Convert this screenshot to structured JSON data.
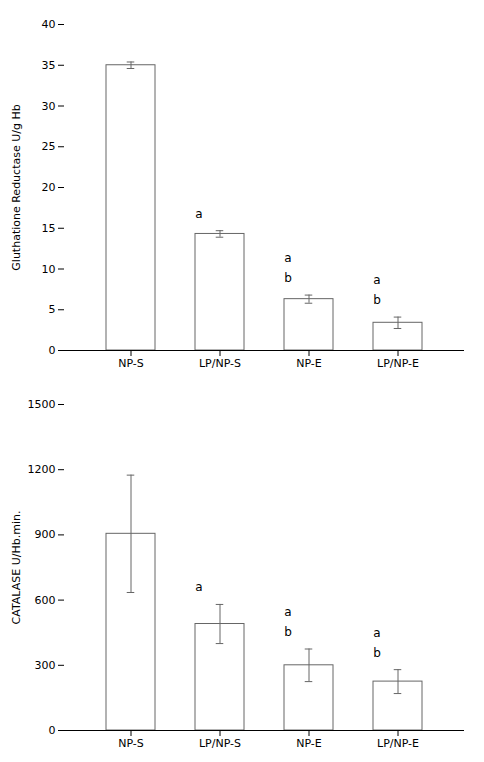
{
  "chart_data": [
    {
      "type": "bar",
      "categories": [
        "NP-S",
        "LP/NP-S",
        "NP-E",
        "LP/NP-E"
      ],
      "values": [
        35.0,
        14.3,
        6.3,
        3.4
      ],
      "errors": [
        0.4,
        0.4,
        0.5,
        0.7
      ],
      "ylabel": "Gluthatione Reductase U/g Hb",
      "ylim": [
        0,
        40
      ],
      "yticks": [
        0,
        5,
        10,
        15,
        20,
        25,
        30,
        35,
        40
      ],
      "annotations": {
        "LP/NP-S": [
          "a"
        ],
        "NP-E": [
          "a",
          "b"
        ],
        "LP/NP-E": [
          "a",
          "b"
        ]
      },
      "color": "#ffffff",
      "grid": false
    },
    {
      "type": "bar",
      "categories": [
        "NP-S",
        "LP/NP-S",
        "NP-E",
        "LP/NP-E"
      ],
      "values": [
        905.0,
        490.0,
        300.0,
        225.0
      ],
      "errors": [
        270.0,
        90.0,
        75.0,
        55.0
      ],
      "ylabel": "CATALASE U/Hb.min.",
      "ylim": [
        0,
        1500
      ],
      "yticks": [
        0,
        300,
        600,
        900,
        1200,
        1500
      ],
      "annotations": {
        "LP/NP-S": [
          "a"
        ],
        "NP-E": [
          "a",
          "b"
        ],
        "LP/NP-E": [
          "a",
          "b"
        ]
      },
      "color": "#ffffff",
      "grid": false
    }
  ]
}
